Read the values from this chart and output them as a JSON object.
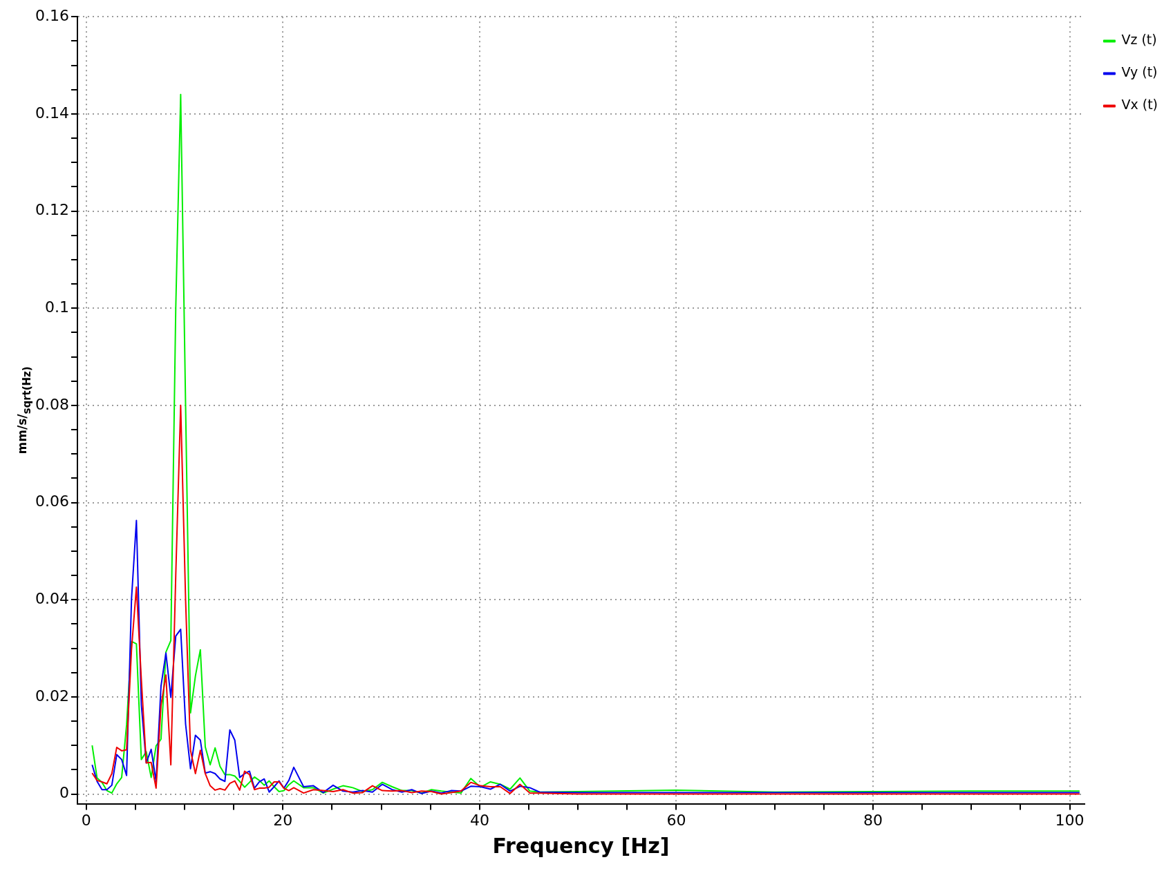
{
  "chart_data": {
    "type": "line",
    "xlabel": "Frequency [Hz]",
    "ylabel": "mm/s/$_{sqrt(Hz)}$",
    "x": [
      0.6,
      1.1,
      1.6,
      2.1,
      2.6,
      3.1,
      3.6,
      4.1,
      4.6,
      5.1,
      5.6,
      6.1,
      6.6,
      7.1,
      7.6,
      8.1,
      8.6,
      9.1,
      9.6,
      10.1,
      10.6,
      11.1,
      11.6,
      12.1,
      12.6,
      13.1,
      13.6,
      14.1,
      14.6,
      15.1,
      15.6,
      16.1,
      16.6,
      17.1,
      17.6,
      18.1,
      18.6,
      19.1,
      19.6,
      20.1,
      20.6,
      21.1,
      22.1,
      23.1,
      24.1,
      25.1,
      26.1,
      27.1,
      28.1,
      29.1,
      30.1,
      31.1,
      32.1,
      33.1,
      34.1,
      35.1,
      36.1,
      37.1,
      38.1,
      39.1,
      40.1,
      41.1,
      42.1,
      43.1,
      44.1,
      45.1,
      46.1,
      50,
      60,
      70,
      80,
      90,
      101
    ],
    "series": [
      {
        "name": "Vz (t)",
        "color": "#00ee00",
        "values": [
          0.01,
          0.0033,
          0.0024,
          0.0007,
          0.0002,
          0.0021,
          0.0034,
          0.0142,
          0.0314,
          0.0309,
          0.0071,
          0.0087,
          0.0034,
          0.0099,
          0.0113,
          0.0292,
          0.0316,
          0.1,
          0.144,
          0.08,
          0.0167,
          0.0243,
          0.0297,
          0.0097,
          0.006,
          0.0095,
          0.0057,
          0.004,
          0.004,
          0.0037,
          0.0026,
          0.0014,
          0.0024,
          0.0035,
          0.0028,
          0.0018,
          0.0027,
          0.0015,
          0.0005,
          0.0007,
          0.0019,
          0.0027,
          0.0013,
          0.0013,
          0.0002,
          0.001,
          0.0017,
          0.0013,
          0.0005,
          0.0009,
          0.0024,
          0.0015,
          0.0007,
          0.0007,
          0.0002,
          0.0009,
          0.0006,
          0.0004,
          0.0002,
          0.0032,
          0.0014,
          0.0025,
          0.002,
          0.001,
          0.0033,
          0.0006,
          0.0004,
          0.0005,
          0.0008,
          0.0004,
          0.0005,
          0.0006,
          0.0006
        ]
      },
      {
        "name": "Vy (t)",
        "color": "#0000ee",
        "values": [
          0.006,
          0.0026,
          0.0009,
          0.0009,
          0.0018,
          0.0081,
          0.0071,
          0.0038,
          0.0401,
          0.0563,
          0.0184,
          0.0064,
          0.0092,
          0.0026,
          0.0222,
          0.029,
          0.0199,
          0.0325,
          0.0339,
          0.0144,
          0.0052,
          0.0121,
          0.0111,
          0.0043,
          0.0046,
          0.0042,
          0.0031,
          0.0026,
          0.0132,
          0.0111,
          0.0034,
          0.0042,
          0.0047,
          0.0012,
          0.0025,
          0.0031,
          0.0004,
          0.0015,
          0.0027,
          0.0012,
          0.0028,
          0.0055,
          0.0015,
          0.0017,
          0.0003,
          0.0018,
          0.0006,
          0.0004,
          0.0007,
          0.0004,
          0.002,
          0.0009,
          0.0004,
          0.0009,
          0.0001,
          0.0006,
          0.0002,
          0.0007,
          0.0006,
          0.0016,
          0.0015,
          0.001,
          0.002,
          0.0006,
          0.0016,
          0.0013,
          0.0004,
          0.0003,
          0.0003,
          0.0003,
          0.0003,
          0.0003,
          0.0003
        ]
      },
      {
        "name": "Vx (t)",
        "color": "#ee0000",
        "values": [
          0.0043,
          0.0028,
          0.0025,
          0.0021,
          0.0042,
          0.0096,
          0.0089,
          0.0091,
          0.0297,
          0.0426,
          0.0236,
          0.0064,
          0.0065,
          0.0012,
          0.0182,
          0.0245,
          0.006,
          0.045,
          0.08,
          0.04,
          0.009,
          0.0042,
          0.009,
          0.0042,
          0.0017,
          0.0008,
          0.0011,
          0.0008,
          0.0022,
          0.0027,
          0.0008,
          0.0047,
          0.004,
          0.0009,
          0.0012,
          0.0012,
          0.0014,
          0.0025,
          0.0025,
          0.0012,
          0.0007,
          0.0013,
          0.0002,
          0.0009,
          0.0007,
          0.0005,
          0.0009,
          0.0002,
          0.0003,
          0.0017,
          0.0007,
          0.0006,
          0.0007,
          0.0003,
          0.0006,
          0.0005,
          0,
          0.0003,
          0.0006,
          0.0024,
          0.0017,
          0.0015,
          0.0015,
          0.0001,
          0.002,
          0.0002,
          0.0002,
          0,
          0,
          0,
          0,
          0,
          0
        ]
      }
    ],
    "xlim": [
      -0.9,
      101.5
    ],
    "xticks": [
      0,
      {
        "value": 5,
        "label": null
      },
      {
        "value": 10,
        "label": null
      },
      {
        "value": 15,
        "label": null
      },
      20,
      {
        "value": 25,
        "label": null
      },
      {
        "value": 30,
        "label": null
      },
      {
        "value": 35,
        "label": null
      },
      40,
      {
        "value": 45,
        "label": null
      },
      {
        "value": 50,
        "label": null
      },
      {
        "value": 55,
        "label": null
      },
      60,
      {
        "value": 65,
        "label": null
      },
      {
        "value": 70,
        "label": null
      },
      {
        "value": 75,
        "label": null
      },
      80,
      {
        "value": 85,
        "label": null
      },
      {
        "value": 90,
        "label": null
      },
      {
        "value": 95,
        "label": null
      },
      100
    ],
    "ylim": [
      -0.002,
      0.16
    ],
    "yticks": [
      0,
      {
        "value": 0.005,
        "label": null
      },
      {
        "value": 0.01,
        "label": null
      },
      {
        "value": 0.015,
        "label": null
      },
      0.02,
      {
        "value": 0.025,
        "label": null
      },
      {
        "value": 0.03,
        "label": null
      },
      {
        "value": 0.035,
        "label": null
      },
      0.04,
      {
        "value": 0.045,
        "label": null
      },
      {
        "value": 0.05,
        "label": null
      },
      {
        "value": 0.055,
        "label": null
      },
      0.06,
      {
        "value": 0.065,
        "label": null
      },
      {
        "value": 0.07,
        "label": null
      },
      {
        "value": 0.075,
        "label": null
      },
      0.08,
      {
        "value": 0.085,
        "label": null
      },
      {
        "value": 0.09,
        "label": null
      },
      {
        "value": 0.095,
        "label": null
      },
      0.1,
      {
        "value": 0.105,
        "label": null
      },
      {
        "value": 0.11,
        "label": null
      },
      {
        "value": 0.115,
        "label": null
      },
      0.12,
      {
        "value": 0.125,
        "label": null
      },
      {
        "value": 0.13,
        "label": null
      },
      {
        "value": 0.135,
        "label": null
      },
      0.14,
      {
        "value": 0.145,
        "label": null
      },
      {
        "value": 0.15,
        "label": null
      },
      {
        "value": 0.155,
        "label": null
      },
      0.16
    ],
    "grid": true,
    "legend": "top right",
    "marker": "none",
    "line_style": "solid"
  }
}
